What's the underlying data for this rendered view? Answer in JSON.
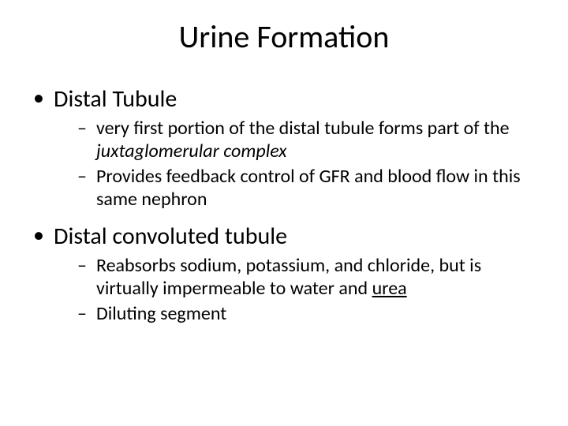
{
  "title": "Urine Formation",
  "bullets": {
    "b1": {
      "label": "Distal Tubule",
      "sub": {
        "s1a": "very first portion of the distal tubule forms part of the ",
        "s1b_italic": "juxtaglomerular complex",
        "s2": "Provides feedback control of GFR and blood flow in this same nephron"
      }
    },
    "b2": {
      "label": "Distal convoluted tubule",
      "sub": {
        "s1a": "Reabsorbs sodium, potassium, and chloride, but is virtually impermeable to water and ",
        "s1b_ul": "urea",
        "s2": "Diluting segment"
      }
    }
  },
  "colors": {
    "background": "#ffffff",
    "text": "#000000"
  },
  "fonts": {
    "title_size_pt": 40,
    "lvl1_size_pt": 30,
    "lvl2_size_pt": 24,
    "family": "Calibri"
  }
}
